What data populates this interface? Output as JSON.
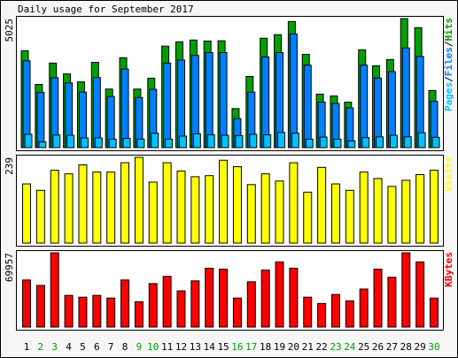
{
  "chart_data": [
    {
      "type": "bar",
      "title": "Daily usage for September 2017",
      "legend_separator": "/",
      "ylim": [
        0,
        5025
      ],
      "yticks": [
        5025
      ],
      "series": [
        {
          "name": "Hits",
          "color": "#00a000",
          "values": [
            3770,
            2460,
            3290,
            2870,
            2560,
            3320,
            2280,
            3500,
            2280,
            2700,
            3950,
            4120,
            4190,
            4150,
            4160,
            1520,
            2770,
            4260,
            4400,
            4910,
            3630,
            2080,
            2010,
            1770,
            3810,
            3190,
            3430,
            5025,
            4670,
            2220
          ]
        },
        {
          "name": "Files",
          "color": "#0080ff",
          "values": [
            3380,
            2150,
            2720,
            2520,
            2160,
            2730,
            1990,
            3060,
            1950,
            2270,
            3290,
            3410,
            3590,
            3700,
            3700,
            1130,
            2160,
            3530,
            3700,
            4430,
            3210,
            1770,
            1720,
            1550,
            3210,
            2710,
            2960,
            3880,
            3550,
            1800
          ]
        },
        {
          "name": "Pages",
          "color": "#00c0ff",
          "values": [
            520,
            220,
            490,
            480,
            380,
            380,
            330,
            360,
            330,
            560,
            330,
            450,
            540,
            500,
            480,
            470,
            520,
            500,
            590,
            560,
            330,
            410,
            330,
            260,
            390,
            420,
            480,
            420,
            580,
            400
          ]
        }
      ]
    },
    {
      "type": "bar",
      "ylim": [
        0,
        239
      ],
      "yticks": [
        239
      ],
      "series": [
        {
          "name": "Visits",
          "color": "#ffff00",
          "values": [
            165,
            147,
            203,
            193,
            218,
            198,
            198,
            224,
            239,
            170,
            224,
            201,
            185,
            188,
            231,
            213,
            163,
            193,
            173,
            224,
            142,
            211,
            165,
            147,
            198,
            180,
            158,
            175,
            191,
            203
          ]
        }
      ]
    },
    {
      "type": "bar",
      "ylim": [
        0,
        69957
      ],
      "yticks": [
        69957
      ],
      "categories": [
        "1",
        "2",
        "3",
        "4",
        "5",
        "6",
        "7",
        "8",
        "9",
        "10",
        "11",
        "12",
        "13",
        "14",
        "15",
        "16",
        "17",
        "18",
        "19",
        "20",
        "21",
        "22",
        "23",
        "24",
        "25",
        "26",
        "27",
        "28",
        "29",
        "30"
      ],
      "category_colors": [
        "#000000",
        "#00a000",
        "#00a000",
        "#000000",
        "#000000",
        "#000000",
        "#000000",
        "#000000",
        "#00a000",
        "#00a000",
        "#000000",
        "#000000",
        "#000000",
        "#000000",
        "#000000",
        "#00a000",
        "#00a000",
        "#000000",
        "#000000",
        "#000000",
        "#000000",
        "#000000",
        "#00a000",
        "#00a000",
        "#000000",
        "#000000",
        "#000000",
        "#000000",
        "#000000",
        "#00a000"
      ],
      "series": [
        {
          "name": "KBytes",
          "color": "#ff0000",
          "values": [
            44360,
            39240,
            69957,
            29860,
            28150,
            29860,
            27300,
            44360,
            23880,
            40950,
            47770,
            34120,
            43510,
            55450,
            54600,
            27300,
            42650,
            53740,
            61420,
            55450,
            28150,
            22180,
            30710,
            24730,
            35830,
            54600,
            46920,
            69957,
            61420,
            27300
          ]
        }
      ]
    }
  ]
}
